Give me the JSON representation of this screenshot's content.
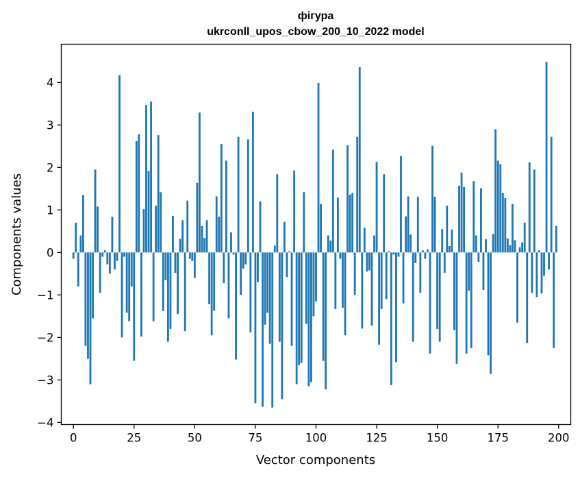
{
  "chart_data": {
    "type": "bar",
    "title_line1": "фігура",
    "title_line2": "ukrconll_upos_cbow_200_10_2022 model",
    "xlabel": "Vector components",
    "ylabel": "Components values",
    "xlim": [
      -5,
      205
    ],
    "ylim": [
      -4.05,
      4.9
    ],
    "x_ticks": [
      0,
      25,
      50,
      75,
      100,
      125,
      150,
      175,
      200
    ],
    "y_ticks": [
      -4,
      -3,
      -2,
      -1,
      0,
      1,
      2,
      3,
      4
    ],
    "bar_color": "#1f77b4",
    "grid": false,
    "legend": "none",
    "values": [
      -0.15,
      0.7,
      -0.8,
      0.4,
      1.35,
      -2.2,
      -2.5,
      -3.1,
      -1.55,
      1.95,
      1.08,
      -0.95,
      -0.1,
      0.05,
      -0.28,
      -0.5,
      0.84,
      -0.4,
      -0.2,
      4.17,
      -2.0,
      -0.1,
      -1.42,
      -1.62,
      -0.8,
      -2.55,
      2.62,
      2.78,
      -1.98,
      1.02,
      3.47,
      1.92,
      3.55,
      -1.62,
      1.1,
      2.76,
      1.42,
      -1.38,
      -0.65,
      -2.1,
      -1.8,
      0.86,
      -0.48,
      -1.45,
      0.32,
      0.76,
      -1.85,
      1.22,
      -0.15,
      -0.2,
      -0.6,
      1.64,
      3.29,
      0.62,
      0.34,
      0.76,
      -1.22,
      -1.95,
      -1.37,
      1.32,
      0.84,
      2.55,
      -0.72,
      2.16,
      -1.55,
      0.47,
      -0.05,
      -2.52,
      2.72,
      -1.0,
      -0.38,
      -0.28,
      2.66,
      -1.88,
      3.31,
      -3.55,
      -0.7,
      1.2,
      -3.63,
      -1.7,
      -1.42,
      -2.15,
      -3.65,
      0.16,
      1.84,
      -2.1,
      -3.45,
      0.72,
      -0.58,
      0.03,
      -2.2,
      1.93,
      -3.1,
      -2.65,
      -2.6,
      1.42,
      -1.68,
      -3.15,
      -3.05,
      -1.5,
      -1.15,
      3.99,
      1.14,
      -2.55,
      -3.22,
      0.4,
      0.28,
      2.42,
      -1.33,
      1.29,
      -0.15,
      -1.3,
      -1.95,
      2.52,
      1.36,
      1.4,
      -1.0,
      2.72,
      4.36,
      -1.79,
      0.58,
      -0.45,
      -0.42,
      -1.72,
      0.4,
      2.13,
      -2.17,
      -1.33,
      1.84,
      -1.1,
      0.03,
      -3.12,
      -0.05,
      -2.58,
      -0.1,
      2.27,
      -1.2,
      0.85,
      1.32,
      0.42,
      -2.1,
      -0.25,
      1.31,
      -0.95,
      0.05,
      -0.15,
      0.07,
      -2.38,
      2.51,
      1.31,
      -1.8,
      -2.1,
      0.55,
      -0.48,
      1.1,
      0.15,
      0.54,
      -1.83,
      -2.62,
      1.57,
      1.88,
      1.54,
      -2.38,
      -0.9,
      -2.25,
      1.68,
      0.4,
      -0.22,
      1.51,
      -0.88,
      0.31,
      -2.42,
      -2.86,
      0.43,
      2.9,
      2.16,
      2.08,
      1.4,
      1.28,
      0.33,
      0.17,
      1.14,
      0.29,
      -1.65,
      0.12,
      0.24,
      0.7,
      -2.13,
      2.12,
      -0.95,
      1.95,
      -1.05,
      0.05,
      -0.97,
      -0.55,
      4.48,
      -0.4,
      2.72,
      -2.25,
      0.62
    ]
  }
}
